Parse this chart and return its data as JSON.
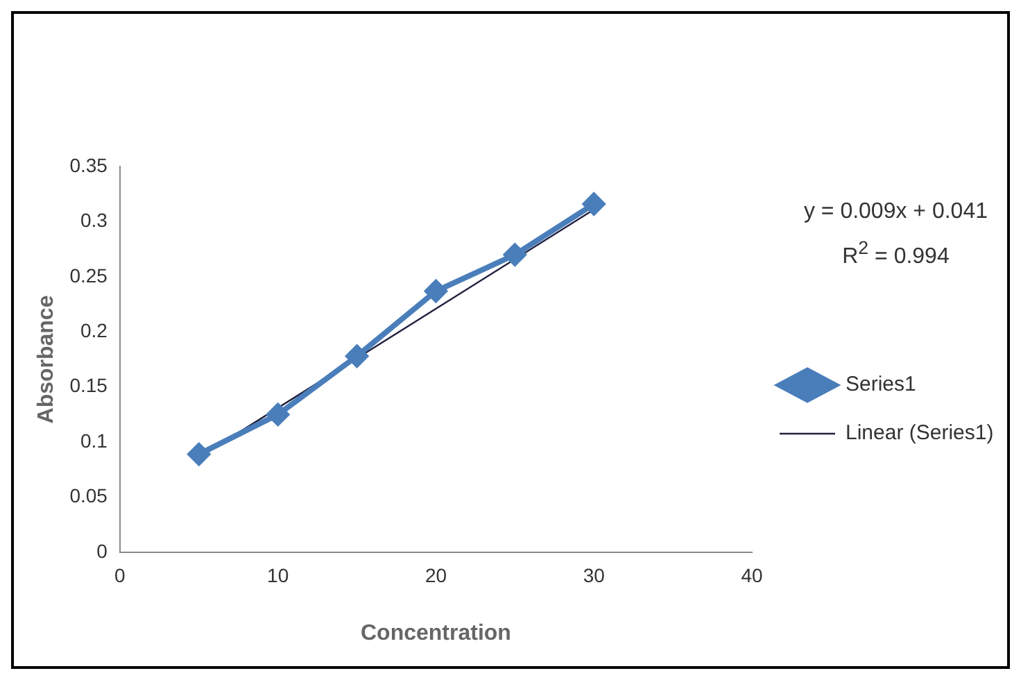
{
  "chart_data": {
    "type": "line",
    "xlabel": "Concentration",
    "ylabel": "Absorbance",
    "xlim": [
      0,
      40
    ],
    "xticks": [
      0,
      10,
      20,
      30,
      40
    ],
    "ylim": [
      0,
      0.35
    ],
    "yticks": [
      0,
      0.05,
      0.1,
      0.15,
      0.2,
      0.25,
      0.3,
      0.35
    ],
    "series": [
      {
        "name": "Series1",
        "color": "#4a7ebb",
        "marker": "diamond",
        "x": [
          5,
          10,
          15,
          20,
          25,
          30
        ],
        "values": [
          0.089,
          0.125,
          0.178,
          0.237,
          0.27,
          0.316
        ]
      },
      {
        "name": "Linear (Series1)",
        "color": "#1f1f3f",
        "marker": "none",
        "x": [
          5,
          30
        ],
        "values": [
          0.086,
          0.311
        ]
      }
    ],
    "annotations": [
      "y = 0.009x + 0.041",
      "R$^{2}$ = 0.994"
    ],
    "legend": "right",
    "grid": false
  }
}
